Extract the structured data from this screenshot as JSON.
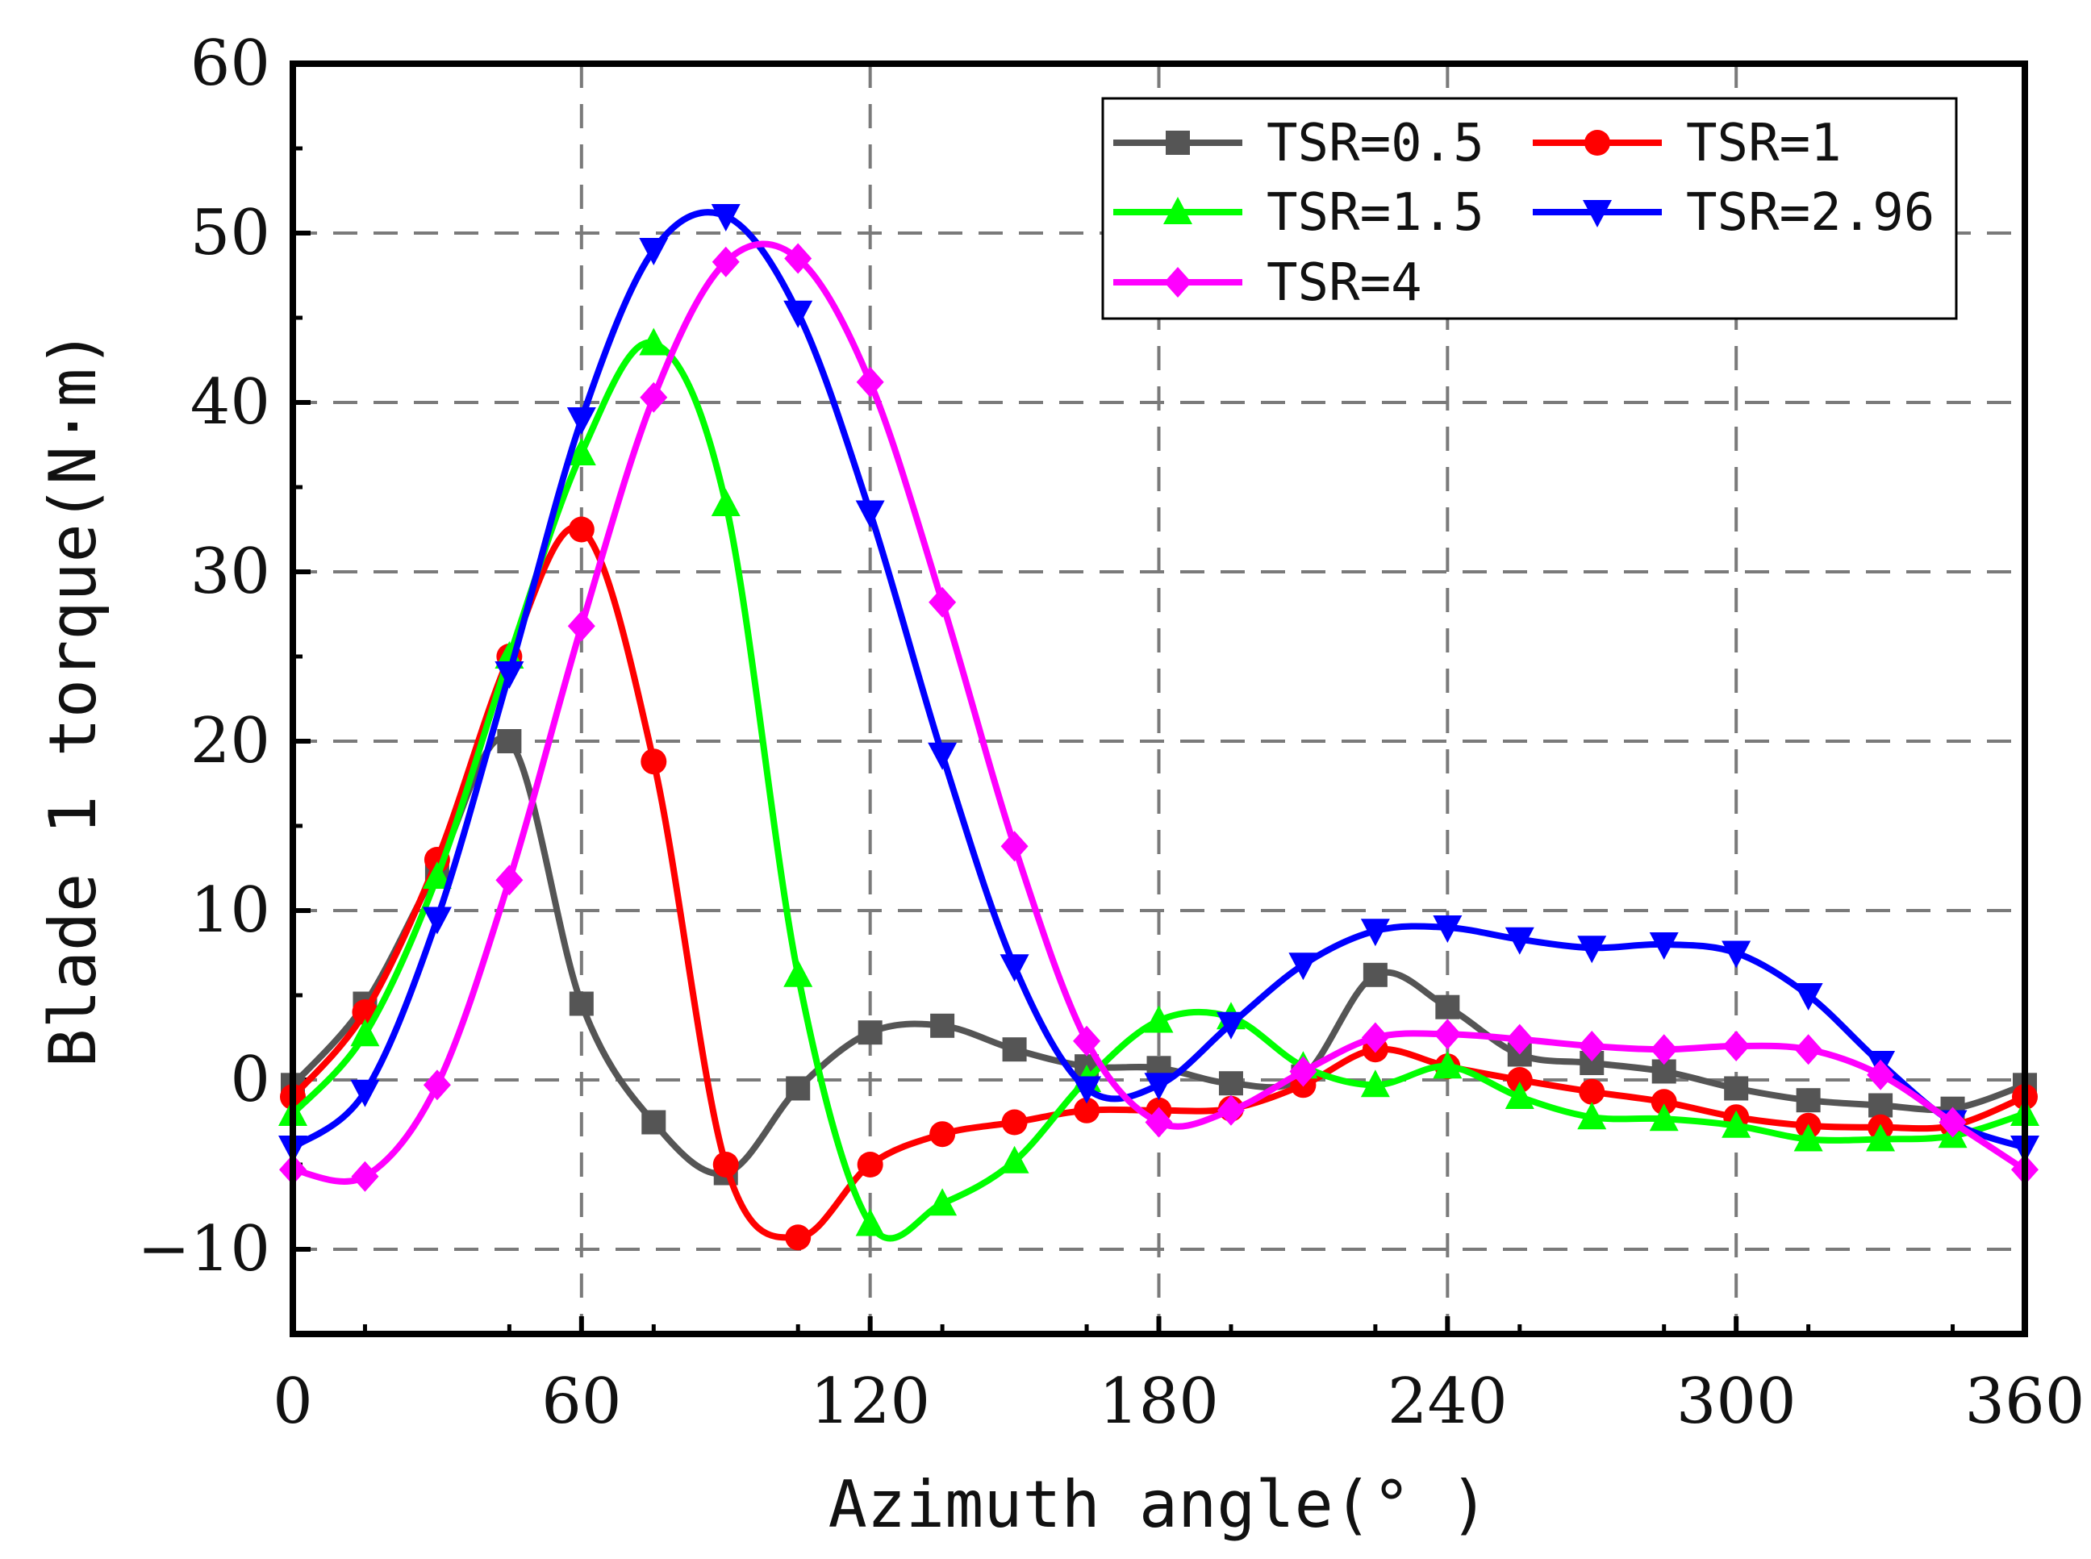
{
  "chart_data": {
    "type": "line",
    "title": "",
    "xlabel": "Azimuth angle(° )",
    "ylabel": "Blade 1 torque(N·m)",
    "xlim": [
      0,
      360
    ],
    "ylim": [
      -15,
      60
    ],
    "xticks": [
      0,
      60,
      120,
      180,
      240,
      300,
      360
    ],
    "yticks": [
      -10,
      0,
      10,
      20,
      30,
      40,
      50,
      60
    ],
    "grid": true,
    "legend_position": "top-right",
    "x": [
      0,
      15,
      30,
      45,
      60,
      75,
      90,
      105,
      120,
      135,
      150,
      165,
      180,
      195,
      210,
      225,
      240,
      255,
      270,
      285,
      300,
      315,
      330,
      345,
      360
    ],
    "series": [
      {
        "name": "TSR=0.5",
        "color": "#555555",
        "marker": "square",
        "values": [
          -0.3,
          4.5,
          12.5,
          20.0,
          4.5,
          -2.5,
          -5.5,
          -0.5,
          2.8,
          3.2,
          1.8,
          0.8,
          0.7,
          -0.2,
          0.2,
          6.2,
          4.3,
          1.5,
          1.0,
          0.5,
          -0.5,
          -1.2,
          -1.5,
          -1.7,
          -0.3
        ]
      },
      {
        "name": "TSR=1",
        "color": "#ff0000",
        "marker": "circle",
        "values": [
          -1.0,
          4.0,
          13.0,
          25.0,
          32.5,
          18.8,
          -5.0,
          -9.3,
          -5.0,
          -3.2,
          -2.5,
          -1.8,
          -1.8,
          -1.7,
          -0.3,
          1.8,
          0.8,
          0.0,
          -0.7,
          -1.3,
          -2.2,
          -2.7,
          -2.8,
          -2.7,
          -1.0
        ]
      },
      {
        "name": "TSR=1.5",
        "color": "#00ff00",
        "marker": "triangle-up",
        "values": [
          -2.0,
          2.7,
          12.0,
          25.0,
          37.0,
          43.5,
          34.0,
          6.2,
          -8.5,
          -7.3,
          -4.8,
          0.0,
          3.5,
          3.7,
          0.8,
          -0.3,
          0.8,
          -1.0,
          -2.2,
          -2.3,
          -2.7,
          -3.5,
          -3.5,
          -3.3,
          -2.0
        ]
      },
      {
        "name": "TSR=2.96",
        "color": "#0000ff",
        "marker": "triangle-down",
        "values": [
          -4.0,
          -0.7,
          9.5,
          24.0,
          39.0,
          49.0,
          51.0,
          45.3,
          33.5,
          19.2,
          6.7,
          -0.5,
          -0.3,
          3.3,
          6.8,
          8.8,
          9.0,
          8.3,
          7.8,
          8.0,
          7.5,
          5.0,
          1.0,
          -2.5,
          -4.0
        ]
      },
      {
        "name": "TSR=4",
        "color": "#ff00ff",
        "marker": "diamond",
        "values": [
          -5.3,
          -5.7,
          -0.3,
          11.8,
          26.8,
          40.3,
          48.3,
          48.5,
          41.2,
          28.2,
          13.8,
          2.3,
          -2.5,
          -1.8,
          0.5,
          2.5,
          2.7,
          2.4,
          2.0,
          1.8,
          2.0,
          1.8,
          0.3,
          -2.5,
          -5.3
        ]
      }
    ]
  }
}
